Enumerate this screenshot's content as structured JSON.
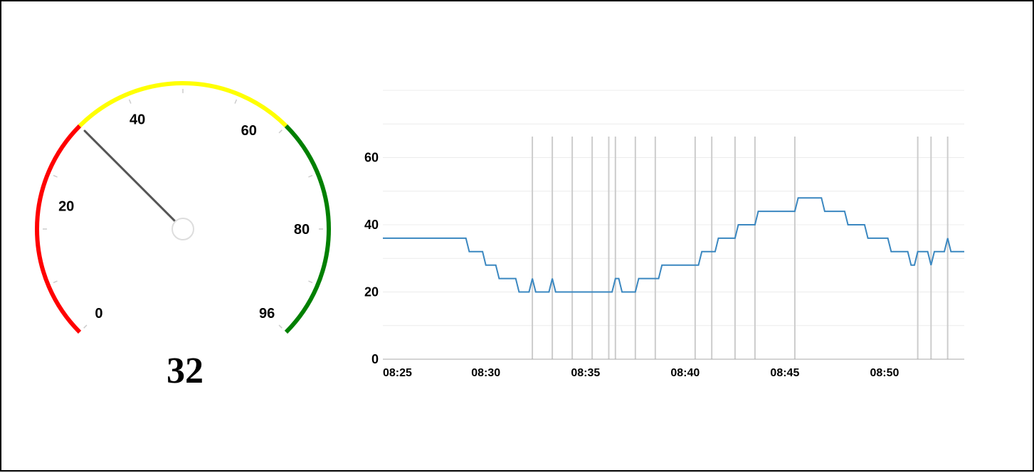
{
  "chart_data": [
    {
      "type": "gauge",
      "value": 32,
      "value_label": "32",
      "min": 0,
      "max": 96,
      "tick_labels": [
        "0",
        "20",
        "40",
        "60",
        "80",
        "96"
      ],
      "bands": [
        {
          "from": 0,
          "to": 32,
          "color": "#ff0000"
        },
        {
          "from": 32,
          "to": 64,
          "color": "#ffff00"
        },
        {
          "from": 64,
          "to": 96,
          "color": "#008000"
        }
      ]
    },
    {
      "type": "line",
      "x_unit": "time",
      "x_ticks": [
        "08:25",
        "08:30",
        "08:35",
        "08:40",
        "08:45",
        "08:50"
      ],
      "y_ticks": [
        "0",
        "20",
        "40",
        "60"
      ],
      "ylim": [
        0,
        80
      ],
      "line_color": "#3a87c0",
      "grid": true,
      "series": [
        {
          "points": [
            [
              "08:24:50",
              36
            ],
            [
              "08:29:00",
              36
            ],
            [
              "08:29:10",
              32
            ],
            [
              "08:29:50",
              32
            ],
            [
              "08:30:00",
              28
            ],
            [
              "08:30:30",
              28
            ],
            [
              "08:30:40",
              24
            ],
            [
              "08:31:30",
              24
            ],
            [
              "08:31:40",
              20
            ],
            [
              "08:32:10",
              20
            ],
            [
              "08:32:20",
              24
            ],
            [
              "08:32:30",
              20
            ],
            [
              "08:33:10",
              20
            ],
            [
              "08:33:20",
              24
            ],
            [
              "08:33:30",
              20
            ],
            [
              "08:36:20",
              20
            ],
            [
              "08:36:30",
              24
            ],
            [
              "08:36:40",
              24
            ],
            [
              "08:36:50",
              20
            ],
            [
              "08:37:30",
              20
            ],
            [
              "08:37:40",
              24
            ],
            [
              "08:38:40",
              24
            ],
            [
              "08:38:50",
              28
            ],
            [
              "08:40:40",
              28
            ],
            [
              "08:40:50",
              32
            ],
            [
              "08:41:30",
              32
            ],
            [
              "08:41:40",
              36
            ],
            [
              "08:42:30",
              36
            ],
            [
              "08:42:40",
              40
            ],
            [
              "08:43:30",
              40
            ],
            [
              "08:43:40",
              44
            ],
            [
              "08:45:30",
              44
            ],
            [
              "08:45:40",
              48
            ],
            [
              "08:46:50",
              48
            ],
            [
              "08:47:00",
              44
            ],
            [
              "08:48:00",
              44
            ],
            [
              "08:48:10",
              40
            ],
            [
              "08:49:00",
              40
            ],
            [
              "08:49:10",
              36
            ],
            [
              "08:50:10",
              36
            ],
            [
              "08:50:20",
              32
            ],
            [
              "08:51:10",
              32
            ],
            [
              "08:51:20",
              28
            ],
            [
              "08:51:30",
              28
            ],
            [
              "08:51:40",
              32
            ],
            [
              "08:52:10",
              32
            ],
            [
              "08:52:20",
              28
            ],
            [
              "08:52:30",
              32
            ],
            [
              "08:53:00",
              32
            ],
            [
              "08:53:10",
              36
            ],
            [
              "08:53:20",
              32
            ],
            [
              "08:54:00",
              32
            ]
          ]
        }
      ],
      "event_markers": [
        "08:32:20",
        "08:33:20",
        "08:34:20",
        "08:35:20",
        "08:36:10",
        "08:36:30",
        "08:37:30",
        "08:38:30",
        "08:40:30",
        "08:41:20",
        "08:42:30",
        "08:43:30",
        "08:45:30",
        "08:51:40",
        "08:52:20",
        "08:53:10"
      ]
    }
  ]
}
